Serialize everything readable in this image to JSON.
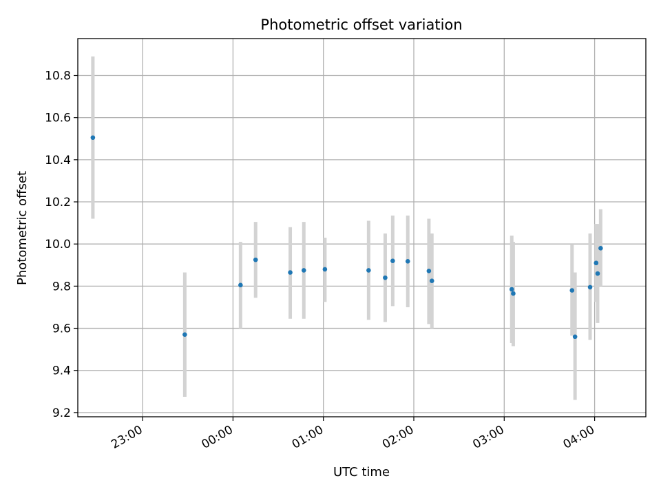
{
  "chart_data": {
    "type": "scatter",
    "title": "Photometric offset variation",
    "xlabel": "UTC time",
    "ylabel": "Photometric offset",
    "x_ticks": [
      "23:00",
      "00:00",
      "01:00",
      "02:00",
      "03:00",
      "04:00"
    ],
    "y_ticks": [
      "9.2",
      "9.4",
      "9.6",
      "9.8",
      "10.0",
      "10.2",
      "10.4",
      "10.6",
      "10.8"
    ],
    "x_range": [
      "22:17",
      "04:34"
    ],
    "y_range": [
      9.18,
      10.975
    ],
    "grid": true,
    "point_color": "#1f77b4",
    "errorbar_color": "#d3d3d3",
    "points": [
      {
        "time": "22:27",
        "offset": 10.505,
        "err_low": 10.12,
        "err_high": 10.89
      },
      {
        "time": "23:28",
        "offset": 9.57,
        "err_low": 9.275,
        "err_high": 9.865
      },
      {
        "time": "00:05",
        "offset": 9.805,
        "err_low": 9.6,
        "err_high": 10.01
      },
      {
        "time": "00:15",
        "offset": 9.925,
        "err_low": 9.745,
        "err_high": 10.105
      },
      {
        "time": "00:38",
        "offset": 9.865,
        "err_low": 9.645,
        "err_high": 10.08
      },
      {
        "time": "00:47",
        "offset": 9.875,
        "err_low": 9.645,
        "err_high": 10.105
      },
      {
        "time": "01:01",
        "offset": 9.88,
        "err_low": 9.725,
        "err_high": 10.03
      },
      {
        "time": "01:30",
        "offset": 9.875,
        "err_low": 9.64,
        "err_high": 10.11
      },
      {
        "time": "01:41",
        "offset": 9.84,
        "err_low": 9.63,
        "err_high": 10.05
      },
      {
        "time": "01:46",
        "offset": 9.92,
        "err_low": 9.705,
        "err_high": 10.135
      },
      {
        "time": "01:56",
        "offset": 9.918,
        "err_low": 9.7,
        "err_high": 10.135
      },
      {
        "time": "02:10",
        "offset": 9.872,
        "err_low": 9.62,
        "err_high": 10.12
      },
      {
        "time": "02:12",
        "offset": 9.825,
        "err_low": 9.6,
        "err_high": 10.05
      },
      {
        "time": "03:05",
        "offset": 9.785,
        "err_low": 9.53,
        "err_high": 10.04
      },
      {
        "time": "03:06",
        "offset": 9.765,
        "err_low": 9.515,
        "err_high": 10.01
      },
      {
        "time": "03:45",
        "offset": 9.78,
        "err_low": 9.565,
        "err_high": 10.0
      },
      {
        "time": "03:47",
        "offset": 9.56,
        "err_low": 9.26,
        "err_high": 9.865
      },
      {
        "time": "03:57",
        "offset": 9.795,
        "err_low": 9.545,
        "err_high": 10.05
      },
      {
        "time": "04:01",
        "offset": 9.91,
        "err_low": 9.725,
        "err_high": 10.095
      },
      {
        "time": "04:02",
        "offset": 9.86,
        "err_low": 9.625,
        "err_high": 10.095
      },
      {
        "time": "04:04",
        "offset": 9.98,
        "err_low": 9.8,
        "err_high": 10.165
      }
    ]
  }
}
